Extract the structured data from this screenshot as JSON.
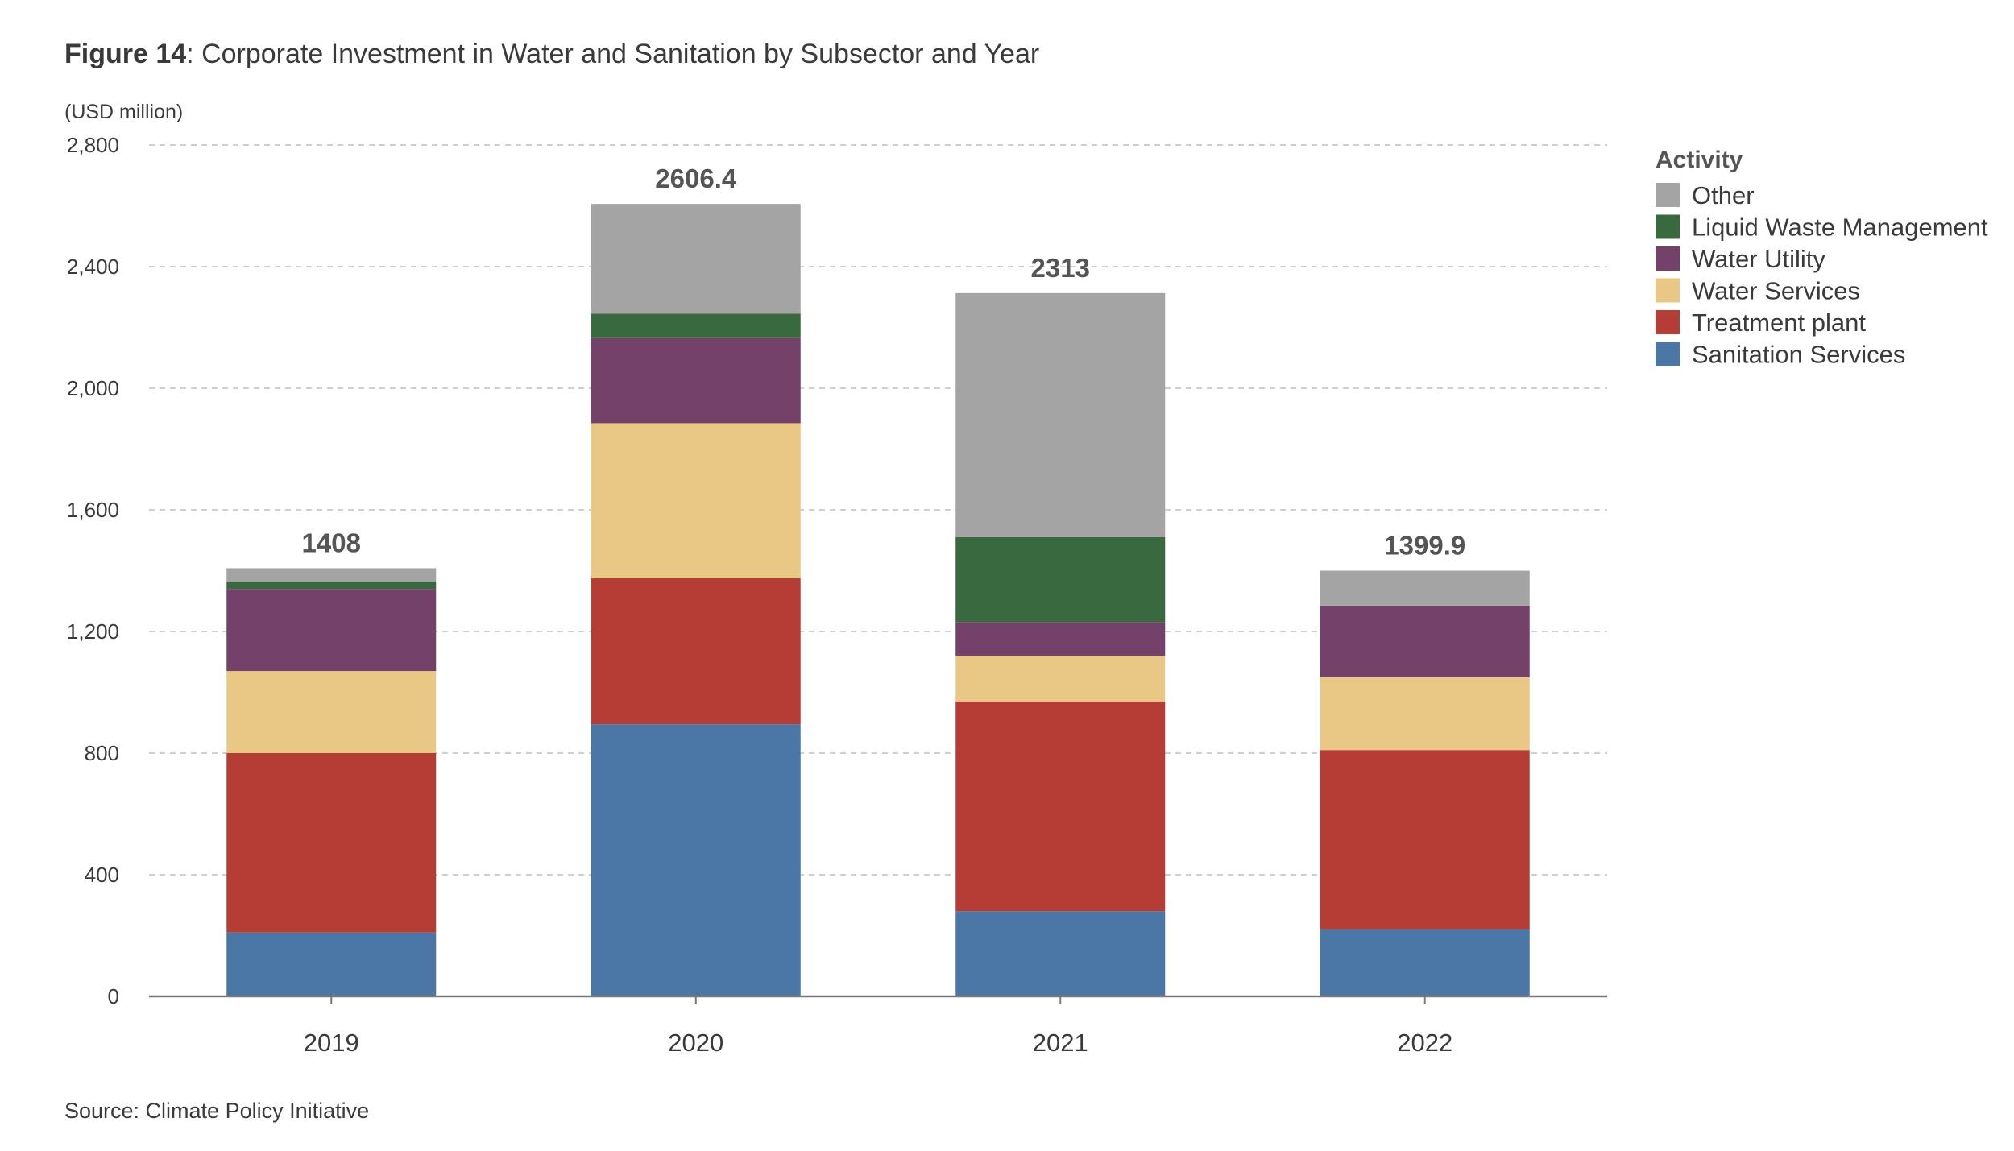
{
  "figure": {
    "title_bold": "Figure 14",
    "title_rest": ": Corporate Investment in Water and Sanitation by Subsector and Year",
    "source": "Source: Climate Policy Initiative"
  },
  "legend": {
    "title": "Activity",
    "items": [
      {
        "label": "Other",
        "color": "#a5a4a4"
      },
      {
        "label": "Liquid Waste Management",
        "color": "#38693f"
      },
      {
        "label": "Water Utility",
        "color": "#74416b"
      },
      {
        "label": "Water Services",
        "color": "#e9c784"
      },
      {
        "label": "Treatment plant",
        "color": "#b53d36"
      },
      {
        "label": "Sanitation Services",
        "color": "#4b77a7"
      }
    ]
  },
  "chart_data": {
    "type": "bar",
    "stacked": true,
    "ylabel": "(USD million)",
    "xlabel": "",
    "ylim": [
      0,
      2800
    ],
    "yticks": [
      "0",
      "400",
      "800",
      "1,200",
      "1,600",
      "2,000",
      "2,400",
      "2,800"
    ],
    "ytick_values": [
      0,
      400,
      800,
      1200,
      1600,
      2000,
      2400,
      2800
    ],
    "grid": true,
    "legend_position": "top-right",
    "categories": [
      "2019",
      "2020",
      "2021",
      "2022"
    ],
    "totals": [
      "1408",
      "2606.4",
      "2313",
      "1399.9"
    ],
    "total_values": [
      1408,
      2606.4,
      2313,
      1399.9
    ],
    "series": [
      {
        "name": "Sanitation Services",
        "color": "#4b77a7",
        "values": [
          210,
          895,
          280,
          220
        ]
      },
      {
        "name": "Treatment plant",
        "color": "#b53d36",
        "values": [
          590,
          480,
          690,
          590
        ]
      },
      {
        "name": "Water Services",
        "color": "#e9c784",
        "values": [
          270,
          510,
          150,
          240
        ]
      },
      {
        "name": "Water Utility",
        "color": "#74416b",
        "values": [
          270,
          280,
          110,
          235
        ]
      },
      {
        "name": "Liquid Waste Management",
        "color": "#38693f",
        "values": [
          25,
          80,
          280,
          0
        ]
      },
      {
        "name": "Other",
        "color": "#a5a4a4",
        "values": [
          43,
          361.4,
          803,
          114.9
        ]
      }
    ]
  }
}
